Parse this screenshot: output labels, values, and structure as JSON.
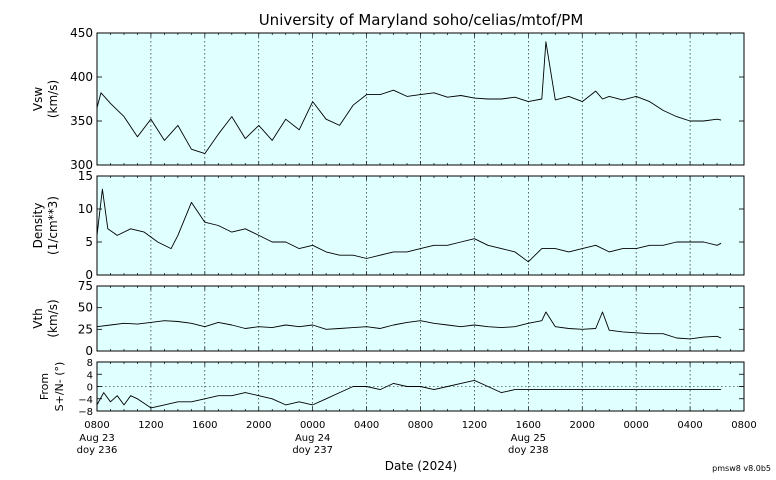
{
  "title": "University of Maryland  soho/celias/mtof/PM",
  "xlabel": "Date (2024)",
  "version": "pmsw8 v8.0b5",
  "colors": {
    "panel_bg": "#e0ffff",
    "trace": "#000000",
    "grid": "#000000"
  },
  "x_ticks": [
    "0800",
    "1200",
    "1600",
    "2000",
    "0000",
    "0400",
    "0800",
    "1200",
    "1600",
    "2000",
    "0000",
    "0400",
    "0800"
  ],
  "day_labels": [
    {
      "date": "Aug 23",
      "doy": "doy 236"
    },
    {
      "date": "Aug 24",
      "doy": "doy 237"
    },
    {
      "date": "Aug 25",
      "doy": "doy 238"
    }
  ],
  "chart_data": [
    {
      "type": "line",
      "name": "Vsw",
      "ylabel": [
        "Vsw",
        "(km/s)"
      ],
      "xlim": [
        0,
        48
      ],
      "ylim": [
        300,
        450
      ],
      "yticks": [
        300,
        350,
        400,
        450
      ],
      "x": [
        0,
        0.3,
        1,
        2,
        3,
        4,
        5,
        6,
        7,
        8,
        9,
        10,
        11,
        12,
        13,
        14,
        15,
        16,
        17,
        18,
        19,
        20,
        21,
        22,
        23,
        24,
        25,
        26,
        27,
        28,
        29,
        30,
        31,
        32,
        33,
        33.3,
        34,
        35,
        36,
        37,
        37.5,
        38,
        39,
        40,
        41,
        42,
        43,
        44,
        45,
        46,
        46.3
      ],
      "values": [
        365,
        382,
        370,
        355,
        332,
        352,
        328,
        345,
        318,
        313,
        335,
        355,
        330,
        345,
        328,
        352,
        340,
        372,
        352,
        345,
        368,
        380,
        380,
        385,
        378,
        380,
        382,
        377,
        379,
        376,
        375,
        375,
        377,
        372,
        375,
        440,
        374,
        378,
        372,
        384,
        375,
        378,
        374,
        378,
        372,
        362,
        355,
        350,
        350,
        352,
        351
      ]
    },
    {
      "type": "line",
      "name": "Density",
      "ylabel": [
        "Density",
        "(1/cm**3)"
      ],
      "xlim": [
        0,
        48
      ],
      "ylim": [
        0,
        15
      ],
      "yticks": [
        0,
        5,
        10,
        15
      ],
      "x": [
        0,
        0.4,
        0.8,
        1.5,
        2.5,
        3.5,
        4.5,
        5.5,
        6,
        7,
        8,
        9,
        10,
        11,
        12,
        13,
        14,
        15,
        16,
        17,
        18,
        19,
        20,
        21,
        22,
        23,
        24,
        25,
        26,
        27,
        28,
        29,
        30,
        31,
        32,
        33,
        34,
        35,
        36,
        37,
        38,
        39,
        40,
        41,
        42,
        43,
        44,
        45,
        46,
        46.3
      ],
      "values": [
        6,
        13,
        7,
        6,
        7,
        6.5,
        5,
        4,
        6,
        11,
        8,
        7.5,
        6.5,
        7,
        6,
        5,
        5,
        4,
        4.5,
        3.5,
        3,
        3,
        2.5,
        3,
        3.5,
        3.5,
        4,
        4.5,
        4.5,
        5,
        5.5,
        4.5,
        4,
        3.5,
        2,
        4,
        4,
        3.5,
        4,
        4.5,
        3.5,
        4,
        4,
        4.5,
        4.5,
        5,
        5,
        5,
        4.5,
        4.8
      ]
    },
    {
      "type": "line",
      "name": "Vth",
      "ylabel": [
        "Vth",
        "(km/s)"
      ],
      "xlim": [
        0,
        48
      ],
      "ylim": [
        0,
        75
      ],
      "yticks": [
        0,
        25,
        50,
        75
      ],
      "x": [
        0,
        1,
        2,
        3,
        4,
        5,
        6,
        7,
        8,
        9,
        10,
        11,
        12,
        13,
        14,
        15,
        16,
        17,
        18,
        19,
        20,
        21,
        22,
        23,
        24,
        25,
        26,
        27,
        28,
        29,
        30,
        31,
        32,
        33,
        33.3,
        34,
        35,
        36,
        37,
        37.5,
        38,
        39,
        40,
        41,
        42,
        43,
        44,
        45,
        46,
        46.3
      ],
      "values": [
        28,
        30,
        32,
        31,
        33,
        35,
        34,
        32,
        28,
        33,
        30,
        26,
        28,
        27,
        30,
        28,
        30,
        25,
        26,
        27,
        28,
        26,
        30,
        33,
        35,
        32,
        30,
        28,
        30,
        28,
        27,
        28,
        32,
        35,
        45,
        28,
        26,
        25,
        26,
        45,
        24,
        22,
        21,
        20,
        20,
        15,
        14,
        16,
        17,
        15
      ]
    },
    {
      "type": "line",
      "name": "Flow direction",
      "ylabel": [
        "From",
        "S+/N- (°)"
      ],
      "xlim": [
        0,
        48
      ],
      "ylim": [
        -8,
        8
      ],
      "yticks": [
        -8,
        -4,
        0,
        4,
        8
      ],
      "ytick_labels": [
        "−8",
        "−4",
        "0",
        "4",
        "8"
      ],
      "x": [
        0,
        0.5,
        1,
        1.5,
        2,
        2.5,
        3,
        4,
        5,
        6,
        7,
        8,
        9,
        10,
        11,
        12,
        13,
        14,
        15,
        16,
        17,
        18,
        19,
        20,
        21,
        22,
        23,
        24,
        25,
        26,
        27,
        28,
        29,
        30,
        31,
        32,
        33,
        34,
        35,
        36,
        37,
        38,
        39,
        40,
        41,
        42,
        43,
        44,
        45,
        46,
        46.3
      ],
      "values": [
        -6,
        -2,
        -5,
        -3,
        -6,
        -3,
        -4,
        -7,
        -6,
        -5,
        -5,
        -4,
        -3,
        -3,
        -2,
        -3,
        -4,
        -6,
        -5,
        -6,
        -4,
        -2,
        0,
        0,
        -1,
        1,
        0,
        0,
        -1,
        0,
        1,
        2,
        0,
        -2,
        -1,
        -1,
        -1,
        -1,
        -1,
        -1,
        -1,
        -1,
        -1,
        -1,
        -1,
        -1,
        -1,
        -1,
        -1,
        -1,
        -1
      ]
    }
  ]
}
